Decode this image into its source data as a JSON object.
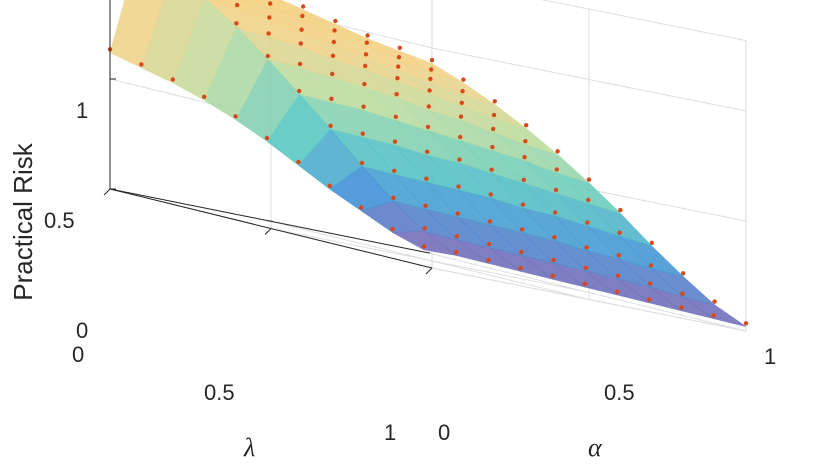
{
  "chart_data": {
    "type": "surface3d",
    "zlabel": "Practical Risk",
    "alpha_label": "α",
    "lambda_label": "λ",
    "zlim": [
      0,
      1
    ],
    "alpha_range": [
      0,
      1
    ],
    "lambda_range": [
      0,
      1
    ],
    "z_ticks": [
      "0",
      "0.5",
      "1"
    ],
    "alpha_ticks": [
      "0",
      "0.5",
      "1"
    ],
    "lambda_ticks": [
      "0",
      "0.5",
      "1"
    ],
    "grid": true,
    "colormap": [
      "#7f62b0",
      "#3e8fd6",
      "#58c9c0",
      "#b9dca0",
      "#f2d288",
      "#f6cf76"
    ],
    "marker_color": "#d9481a",
    "alpha_samples": [
      0.0,
      0.1,
      0.2,
      0.3,
      0.4,
      0.5,
      0.6,
      0.7,
      0.8,
      0.9,
      1.0
    ],
    "lambda_samples": [
      0.0,
      0.1,
      0.2,
      0.3,
      0.4,
      0.5,
      0.6,
      0.7,
      0.8,
      0.9,
      1.0
    ],
    "risk_values": [
      [
        0.93,
        0.95,
        0.97,
        1.0,
        1.03,
        1.06,
        1.09,
        1.12,
        1.15,
        1.18,
        0.62
      ],
      [
        0.87,
        0.88,
        0.9,
        0.93,
        0.95,
        0.98,
        1.0,
        1.02,
        1.04,
        1.06,
        0.58
      ],
      [
        0.8,
        0.81,
        0.83,
        0.85,
        0.87,
        0.89,
        0.91,
        0.93,
        0.95,
        0.96,
        0.54
      ],
      [
        0.72,
        0.73,
        0.75,
        0.77,
        0.79,
        0.81,
        0.82,
        0.84,
        0.85,
        0.86,
        0.49
      ],
      [
        0.63,
        0.64,
        0.66,
        0.68,
        0.69,
        0.71,
        0.72,
        0.73,
        0.74,
        0.74,
        0.43
      ],
      [
        0.53,
        0.54,
        0.56,
        0.57,
        0.58,
        0.59,
        0.6,
        0.61,
        0.61,
        0.61,
        0.36
      ],
      [
        0.42,
        0.43,
        0.44,
        0.45,
        0.46,
        0.47,
        0.47,
        0.48,
        0.48,
        0.48,
        0.28
      ],
      [
        0.3,
        0.31,
        0.32,
        0.33,
        0.33,
        0.34,
        0.34,
        0.34,
        0.34,
        0.34,
        0.2
      ],
      [
        0.19,
        0.19,
        0.2,
        0.2,
        0.21,
        0.21,
        0.21,
        0.21,
        0.21,
        0.21,
        0.13
      ],
      [
        0.09,
        0.09,
        0.1,
        0.1,
        0.1,
        0.1,
        0.1,
        0.1,
        0.1,
        0.1,
        0.06
      ],
      [
        0.02,
        0.02,
        0.02,
        0.02,
        0.02,
        0.02,
        0.02,
        0.02,
        0.02,
        0.02,
        0.01
      ]
    ]
  }
}
